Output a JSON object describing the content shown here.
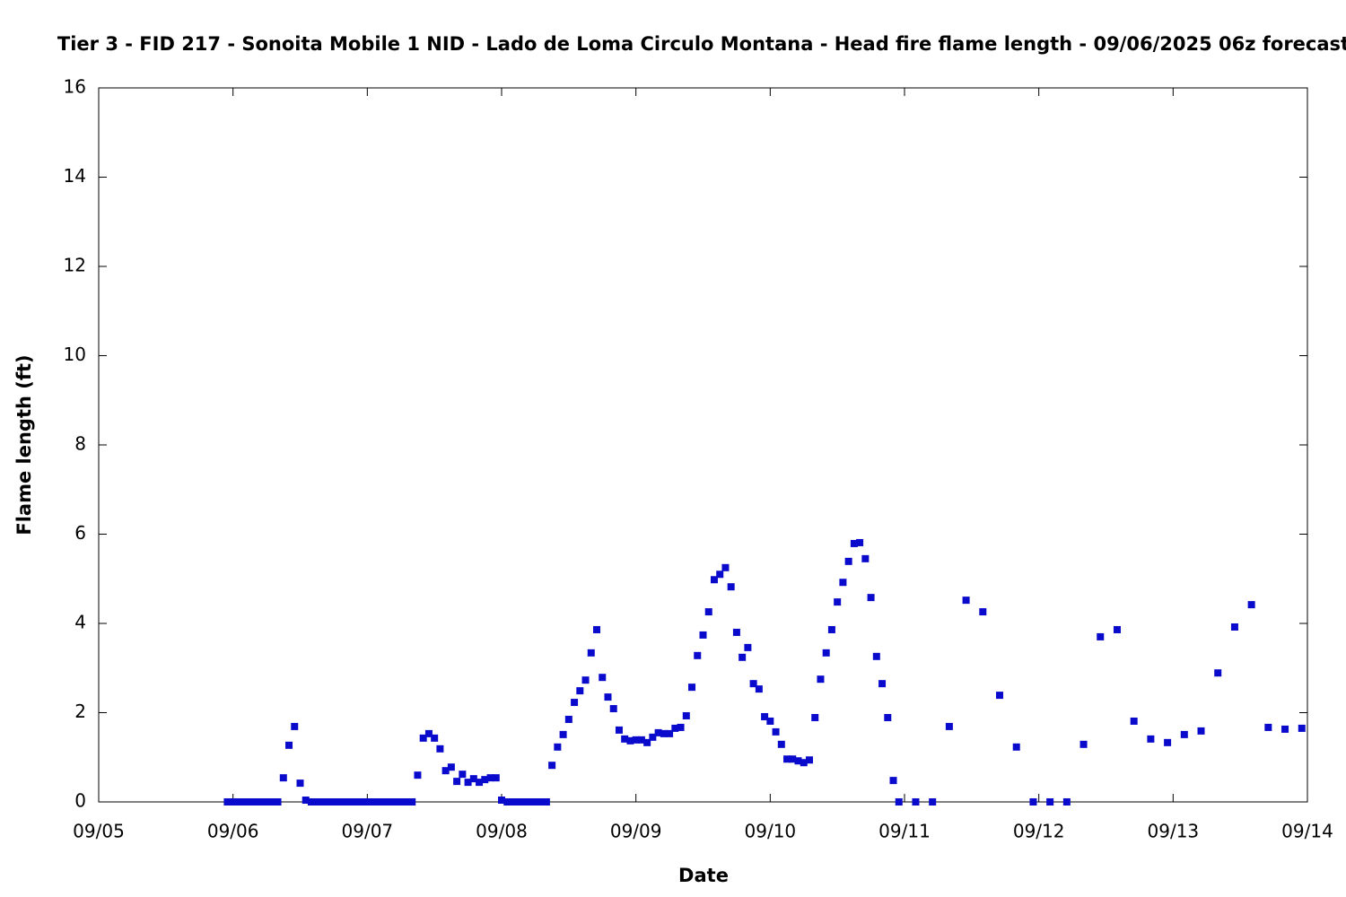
{
  "chart_data": {
    "type": "scatter",
    "title": "Tier 3 - FID 217 - Sonoita Mobile 1 NID - Lado de Loma Circulo Montana - Head fire flame length - 09/06/2025 06z forecast",
    "xlabel": "Date",
    "ylabel": "Flame length (ft)",
    "xlim": [
      0,
      216
    ],
    "xticks": [
      {
        "value": 0,
        "label": "09/05"
      },
      {
        "value": 24,
        "label": "09/06"
      },
      {
        "value": 48,
        "label": "09/07"
      },
      {
        "value": 72,
        "label": "09/08"
      },
      {
        "value": 96,
        "label": "09/09"
      },
      {
        "value": 120,
        "label": "09/10"
      },
      {
        "value": 144,
        "label": "09/11"
      },
      {
        "value": 168,
        "label": "09/12"
      },
      {
        "value": 192,
        "label": "09/13"
      },
      {
        "value": 216,
        "label": "09/14"
      }
    ],
    "ylim": [
      0,
      16
    ],
    "yticks": [
      0,
      2,
      4,
      6,
      8,
      10,
      12,
      14,
      16
    ],
    "grid": false,
    "series": [
      {
        "color": "#0a0acc",
        "x": [
          23,
          24,
          25,
          26,
          27,
          28,
          29,
          30,
          31,
          32,
          33,
          34,
          35,
          36,
          37,
          38,
          39,
          40,
          41,
          42,
          43,
          44,
          45,
          46,
          47,
          48,
          49,
          50,
          51,
          52,
          53,
          54,
          55,
          56,
          57,
          58,
          59,
          60,
          61,
          62,
          63,
          64,
          65,
          66,
          67,
          68,
          69,
          70,
          71,
          72,
          73,
          74,
          75,
          76,
          77,
          78,
          79,
          80,
          81,
          82,
          83,
          84,
          85,
          86,
          87,
          88,
          89,
          90,
          91,
          92,
          93,
          94,
          95,
          96,
          97,
          98,
          99,
          100,
          101,
          102,
          103,
          104,
          105,
          106,
          107,
          108,
          109,
          110,
          111,
          112,
          113,
          114,
          115,
          116,
          117,
          118,
          119,
          120,
          121,
          122,
          123,
          124,
          125,
          126,
          127,
          128,
          129,
          130,
          131,
          132,
          133,
          134,
          135,
          136,
          137,
          138,
          139,
          140,
          141,
          142,
          143,
          146,
          149,
          152,
          155,
          158,
          161,
          164,
          167,
          170,
          173,
          176,
          179,
          182,
          185,
          188,
          191,
          194,
          197,
          200,
          203,
          206,
          209,
          212,
          215
        ],
        "values": [
          0,
          0,
          0,
          0,
          0,
          0,
          0,
          0,
          0,
          0,
          0.54,
          1.27,
          1.69,
          0.42,
          0.04,
          0,
          0,
          0,
          0,
          0,
          0,
          0,
          0,
          0,
          0,
          0,
          0,
          0,
          0,
          0,
          0,
          0,
          0,
          0,
          0.6,
          1.43,
          1.53,
          1.43,
          1.19,
          0.7,
          0.78,
          0.46,
          0.62,
          0.44,
          0.52,
          0.44,
          0.5,
          0.54,
          0.54,
          0.04,
          0,
          0,
          0,
          0,
          0,
          0,
          0,
          0,
          0.82,
          1.23,
          1.51,
          1.85,
          2.23,
          2.49,
          2.73,
          3.34,
          3.86,
          2.79,
          2.35,
          2.09,
          1.61,
          1.41,
          1.37,
          1.39,
          1.39,
          1.33,
          1.45,
          1.55,
          1.53,
          1.53,
          1.65,
          1.67,
          1.93,
          2.57,
          3.28,
          3.74,
          4.26,
          4.98,
          5.1,
          5.25,
          4.82,
          3.8,
          3.24,
          3.46,
          2.65,
          2.53,
          1.91,
          1.81,
          1.57,
          1.29,
          0.96,
          0.96,
          0.92,
          0.88,
          0.94,
          1.89,
          2.75,
          3.34,
          3.86,
          4.48,
          4.92,
          5.39,
          5.79,
          5.81,
          5.45,
          4.58,
          3.26,
          2.65,
          1.89,
          0.48,
          0,
          0,
          0,
          1.69,
          4.52,
          4.26,
          2.39,
          1.23,
          0,
          0,
          0,
          1.29,
          3.7,
          3.86,
          1.81,
          1.41,
          1.33,
          1.51,
          1.59,
          2.89,
          3.92,
          4.42,
          1.67,
          1.63,
          1.65
        ]
      }
    ]
  }
}
